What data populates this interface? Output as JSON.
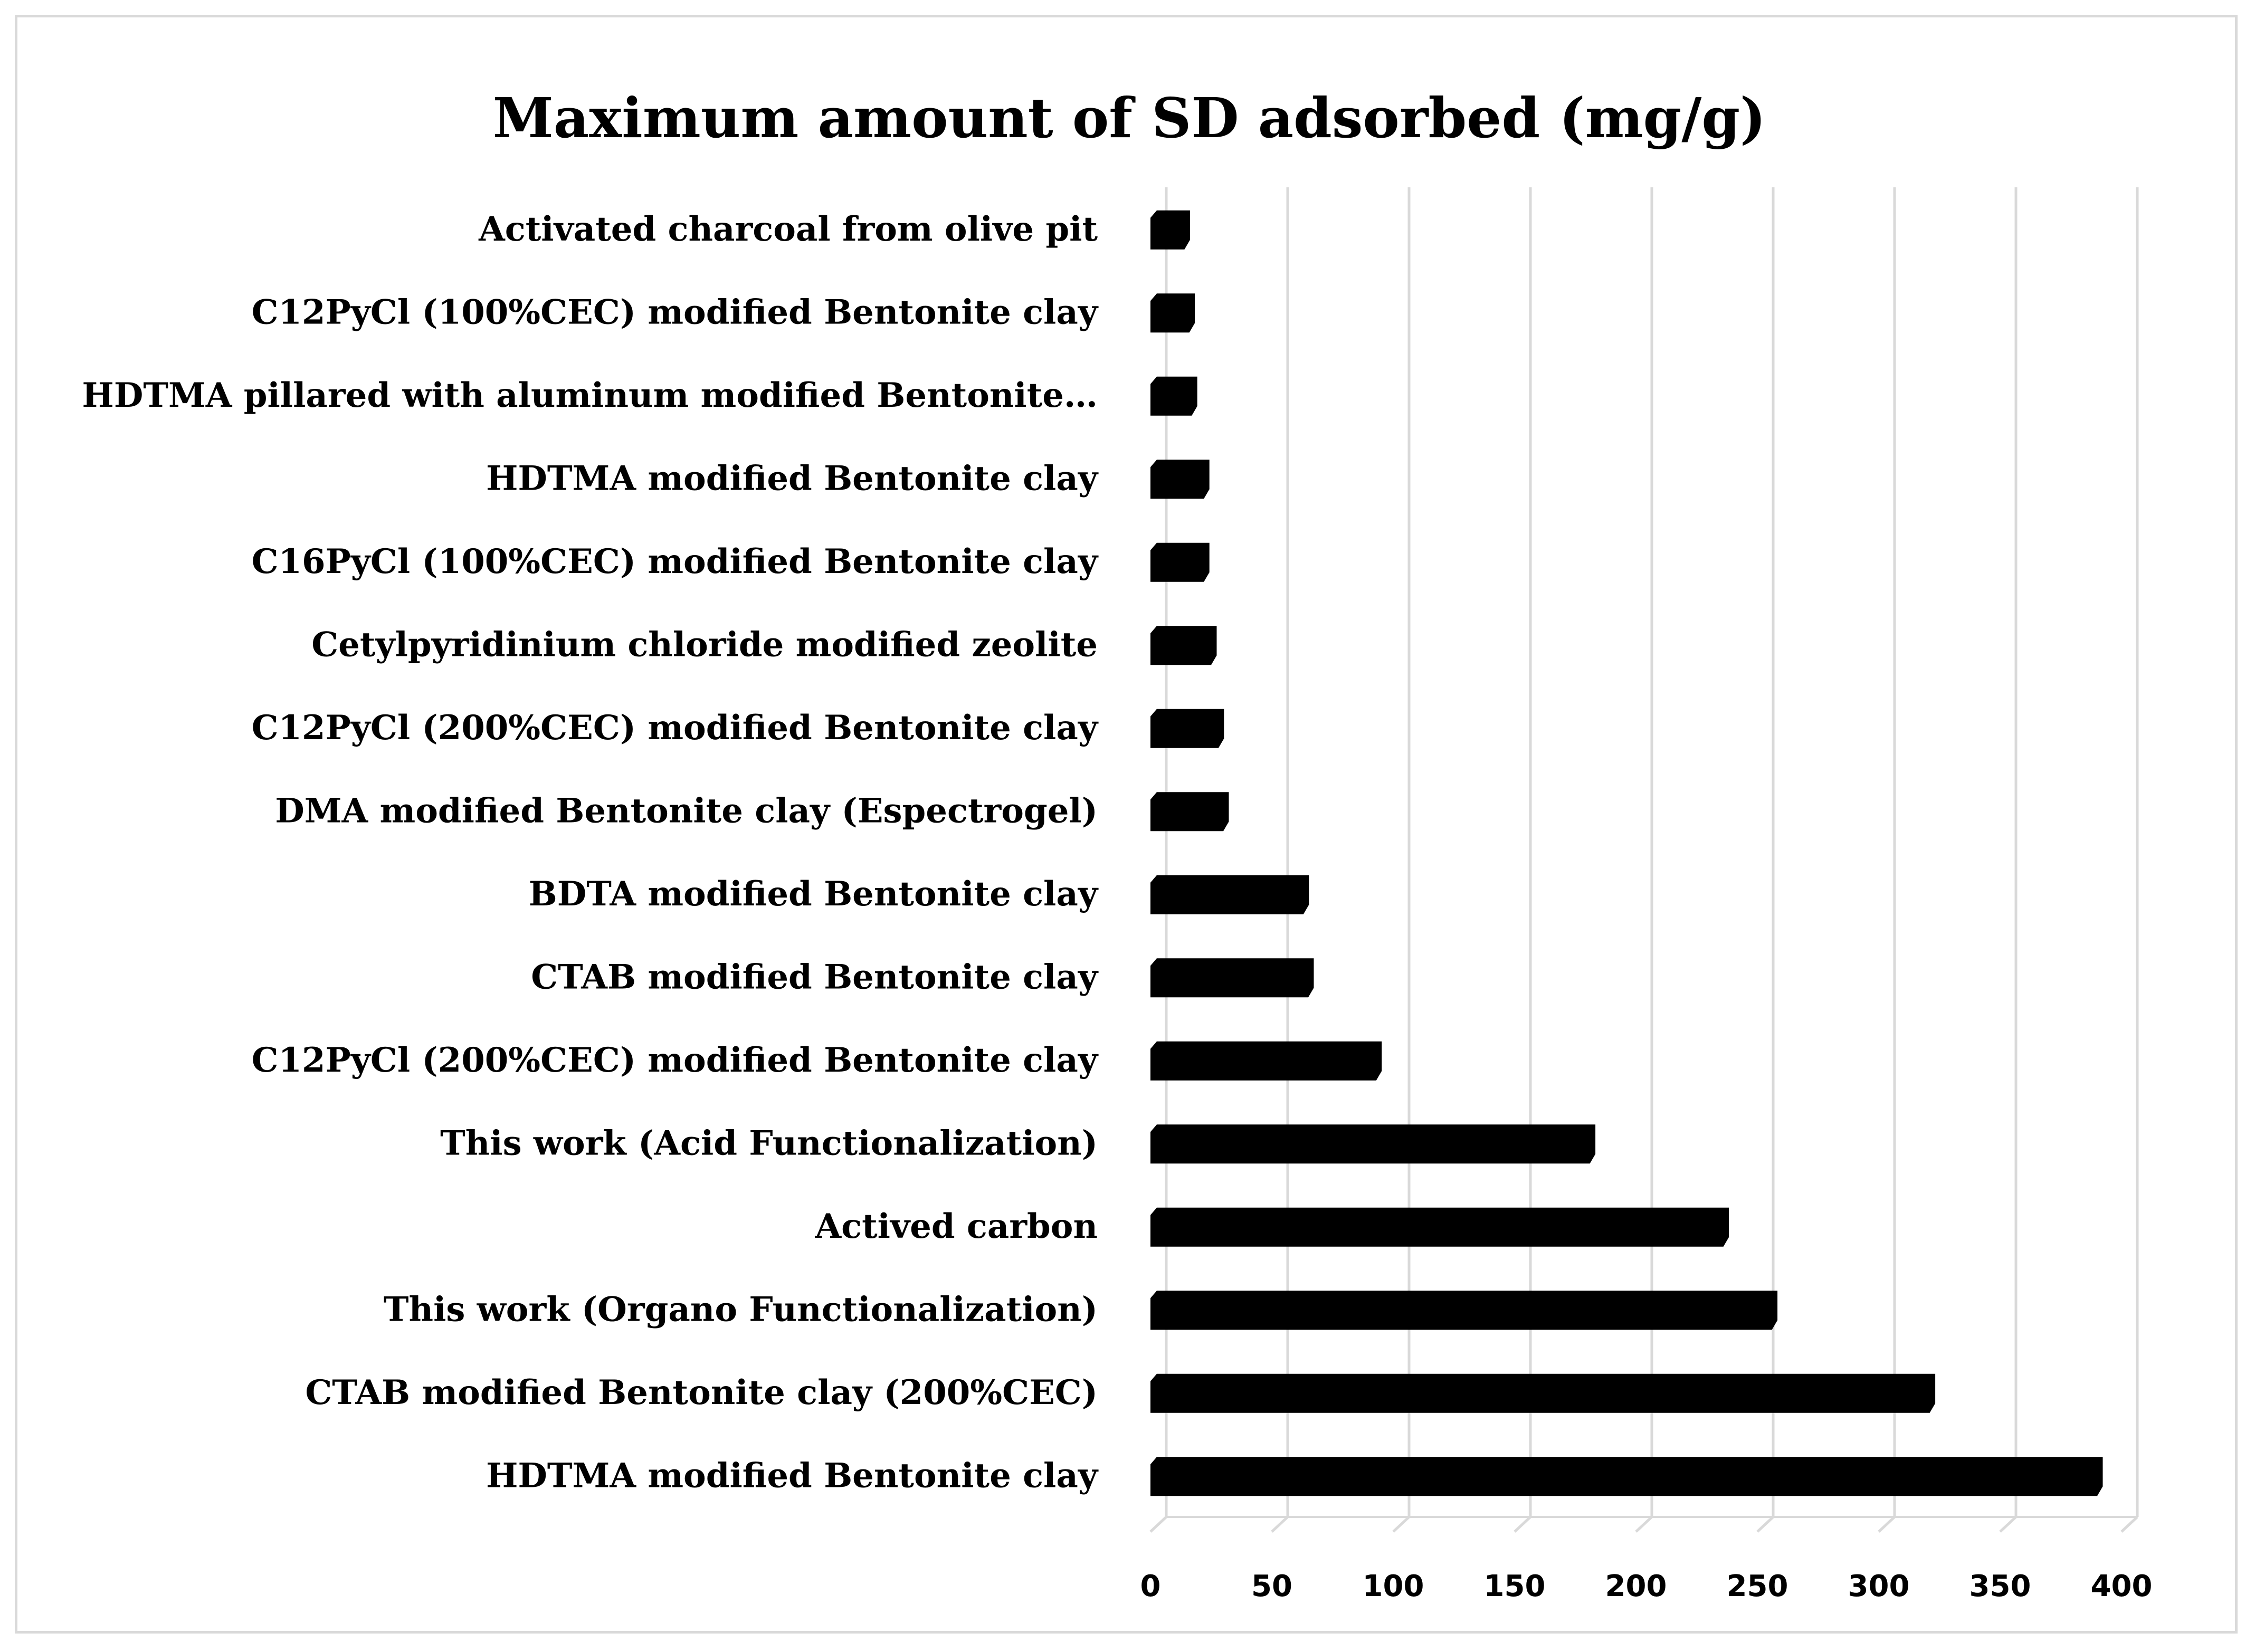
{
  "chart_data": {
    "type": "bar",
    "orientation": "horizontal",
    "title": "Maximum amount of SD adsorbed (mg/g)",
    "xlabel": "",
    "ylabel": "",
    "categories": [
      "HDTMA modified Bentonite clay",
      "CTAB modified Bentonite clay (200%CEC)",
      "This work (Organo Functionalization)",
      "Actived carbon",
      "This work (Acid Functionalization)",
      "C12PyCl (200%CEC) modified Bentonite clay",
      "CTAB modified Bentonite clay",
      "BDTA modified Bentonite clay",
      "DMA modified Bentonite clay (Espectrogel)",
      "C12PyCl (200%CEC) modified Bentonite clay",
      "Cetylpyridinium chloride modified zeolite",
      "C16PyCl (100%CEC) modified Bentonite clay",
      "HDTMA modified Bentonite clay",
      "HDTMA pillared with aluminum modified Bentonite…",
      "C12PyCl (100%CEC) modified Bentonite clay",
      "Activated charcoal from olive pit"
    ],
    "values": [
      390,
      321,
      256,
      236,
      181,
      93,
      65,
      63,
      30,
      28,
      25,
      22,
      22,
      17,
      16,
      14
    ],
    "xlim": [
      0,
      400
    ],
    "xticks": [
      "0",
      "50",
      "100",
      "150",
      "200",
      "250",
      "300",
      "350",
      "400"
    ],
    "grid": true,
    "legend": "none",
    "bar_color": "#000000",
    "grid_color": "#d9d9d9"
  }
}
